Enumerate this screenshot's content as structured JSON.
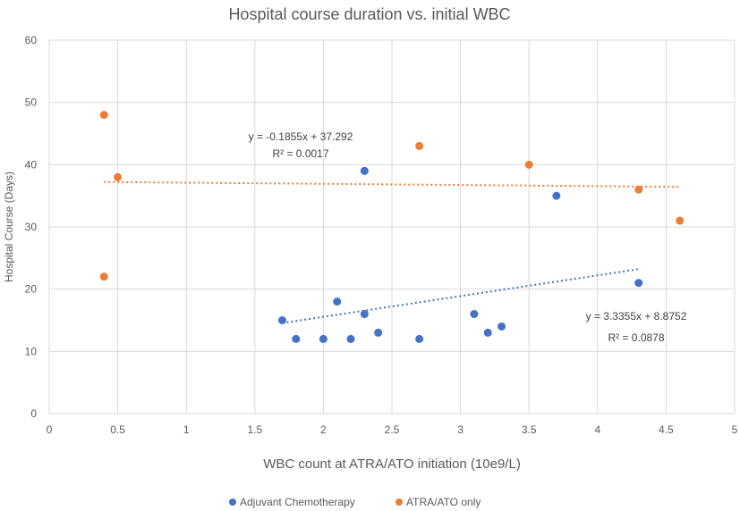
{
  "chart_data": {
    "type": "scatter",
    "title": "Hospital course duration vs. initial WBC",
    "xlabel": "WBC count at ATRA/ATO initiation (10e9/L)",
    "ylabel": "Hospital Course (Days)",
    "xlim": [
      0,
      5
    ],
    "ylim": [
      0,
      60
    ],
    "x_ticks": [
      0,
      0.5,
      1,
      1.5,
      2,
      2.5,
      3,
      3.5,
      4,
      4.5,
      5
    ],
    "y_ticks": [
      0,
      10,
      20,
      30,
      40,
      50,
      60
    ],
    "grid": "vertical and horizontal",
    "legend_position": "bottom",
    "series": [
      {
        "name": "Adjuvant Chemotherapy",
        "color": "#4472c4",
        "points": [
          [
            1.7,
            15
          ],
          [
            1.8,
            12
          ],
          [
            2.0,
            12
          ],
          [
            2.1,
            18
          ],
          [
            2.2,
            12
          ],
          [
            2.3,
            16
          ],
          [
            2.3,
            39
          ],
          [
            2.4,
            13
          ],
          [
            2.7,
            12
          ],
          [
            3.1,
            16
          ],
          [
            3.2,
            13
          ],
          [
            3.3,
            14
          ],
          [
            3.7,
            35
          ],
          [
            4.3,
            21
          ]
        ],
        "trendline": {
          "slope": 3.3355,
          "intercept": 8.8752,
          "x_range": [
            1.7,
            4.3
          ],
          "equation": "y = 3.3355x + 8.8752",
          "r2": "R² = 0.0878"
        }
      },
      {
        "name": "ATRA/ATO only",
        "color": "#ed7d31",
        "points": [
          [
            0.4,
            48
          ],
          [
            0.4,
            22
          ],
          [
            0.5,
            38
          ],
          [
            2.7,
            43
          ],
          [
            3.5,
            40
          ],
          [
            4.3,
            36
          ],
          [
            4.6,
            31
          ]
        ],
        "trendline": {
          "slope": -0.1855,
          "intercept": 37.292,
          "x_range": [
            0.4,
            4.6
          ],
          "equation": "y = -0.1855x + 37.292",
          "r2": "R² = 0.0017"
        }
      }
    ]
  }
}
